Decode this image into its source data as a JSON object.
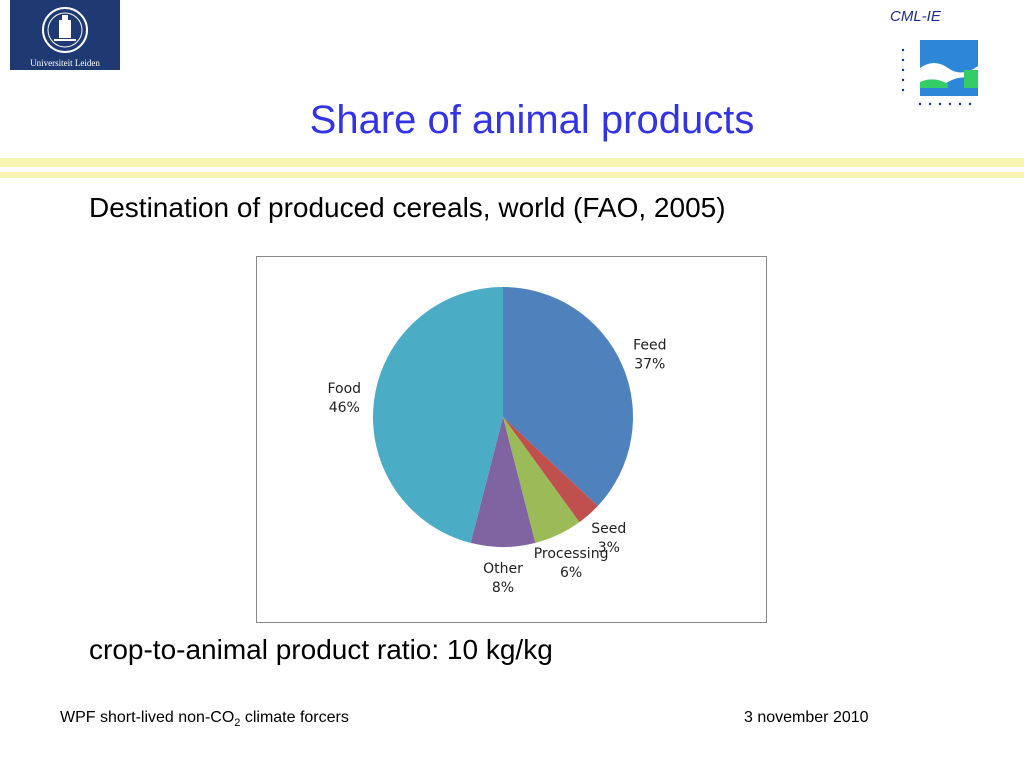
{
  "header": {
    "logo_text": "Universiteit Leiden",
    "org_tag": "CML-IE",
    "title": "Share of animal products"
  },
  "subtitle": "Destination of produced cereals, world (FAO, 2005)",
  "ratio_text": "crop-to-animal product ratio: 10 kg/kg",
  "footer": {
    "left_prefix": "WPF short-lived non-CO",
    "left_subscript": "2",
    "left_suffix": " climate forcers",
    "date": "3 november 2010"
  },
  "colors": {
    "title": "#3333e6",
    "divider": "#faf4b2",
    "logo_blue": "#1f3a72"
  },
  "chart_data": {
    "type": "pie",
    "title": "",
    "slices": [
      {
        "label": "Feed",
        "value": 37,
        "value_label": "37%",
        "color": "#4f81bd"
      },
      {
        "label": "Seed",
        "value": 3,
        "value_label": "3%",
        "color": "#c0504d"
      },
      {
        "label": "Processing",
        "value": 6,
        "value_label": "6%",
        "color": "#9bbb59"
      },
      {
        "label": "Other",
        "value": 8,
        "value_label": "8%",
        "color": "#8064a2"
      },
      {
        "label": "Food",
        "value": 46,
        "value_label": "46%",
        "color": "#4bacc6"
      }
    ],
    "start": "12 o'clock",
    "direction": "clockwise",
    "legend": "none"
  }
}
